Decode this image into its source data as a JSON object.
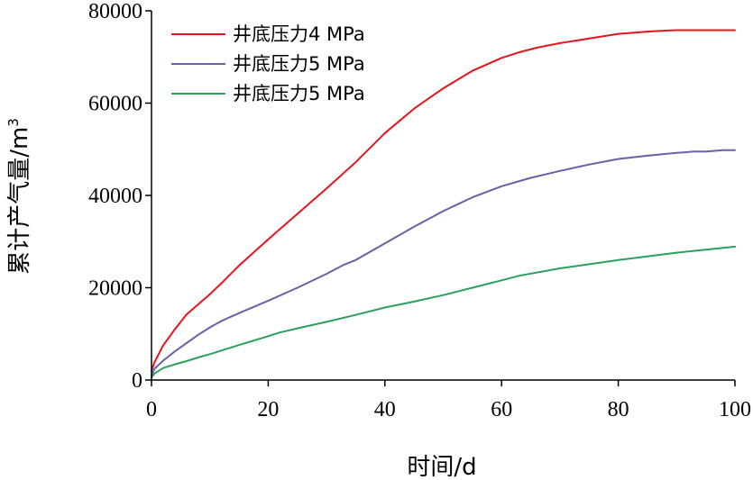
{
  "chart_data": {
    "type": "line",
    "title": "",
    "xlabel": "时间/d",
    "ylabel": "累计产气量/m",
    "ylabel_superscript": "3",
    "xlim": [
      0,
      100
    ],
    "ylim": [
      0,
      80000
    ],
    "xticks": [
      0,
      20,
      40,
      60,
      80,
      100
    ],
    "yticks": [
      0,
      20000,
      40000,
      60000,
      80000
    ],
    "x_tick_labels": [
      "0",
      "20",
      "40",
      "60",
      "80",
      "100"
    ],
    "y_tick_labels": [
      "0",
      "20000",
      "40000",
      "60000",
      "80000"
    ],
    "grid": false,
    "legend_position": "top-left",
    "series": [
      {
        "name": "井底压力4 MPa",
        "color": "#e8141c",
        "x": [
          0,
          0.5,
          2,
          4,
          6,
          8,
          10,
          12,
          15,
          20,
          25,
          30,
          35,
          40,
          45,
          50,
          55,
          60,
          63,
          66,
          70,
          75,
          80,
          85,
          88,
          90,
          95,
          100
        ],
        "y": [
          2000,
          3800,
          7500,
          11000,
          14200,
          16400,
          18600,
          21000,
          24800,
          30500,
          36000,
          41500,
          47200,
          53500,
          58800,
          63200,
          67000,
          69800,
          71000,
          72000,
          73000,
          74000,
          75000,
          75500,
          75700,
          75800,
          75800,
          75800
        ]
      },
      {
        "name": "井底压力5 MPa",
        "color": "#6a5fa8",
        "x": [
          0,
          0.5,
          2,
          4,
          6,
          8,
          10,
          12,
          15,
          20,
          25,
          30,
          33,
          35,
          40,
          45,
          50,
          55,
          60,
          65,
          70,
          75,
          80,
          85,
          90,
          93,
          95,
          98,
          100
        ],
        "y": [
          1000,
          2400,
          4200,
          6200,
          8000,
          9800,
          11400,
          12800,
          14500,
          17200,
          20000,
          23000,
          25000,
          26000,
          29600,
          33200,
          36600,
          39600,
          42000,
          43800,
          45300,
          46700,
          47900,
          48600,
          49200,
          49500,
          49500,
          49800,
          49800
        ]
      },
      {
        "name": "井底压力5 MPa",
        "color": "#2aa05a",
        "x": [
          0,
          0.5,
          2,
          4,
          6,
          8,
          10,
          12,
          15,
          20,
          22,
          25,
          30,
          35,
          40,
          45,
          50,
          55,
          60,
          63,
          70,
          80,
          90,
          100
        ],
        "y": [
          500,
          1400,
          2600,
          3400,
          4100,
          4900,
          5600,
          6400,
          7600,
          9500,
          10300,
          11200,
          12600,
          14100,
          15700,
          17000,
          18400,
          20000,
          21600,
          22600,
          24200,
          26000,
          27600,
          28900
        ]
      }
    ]
  }
}
